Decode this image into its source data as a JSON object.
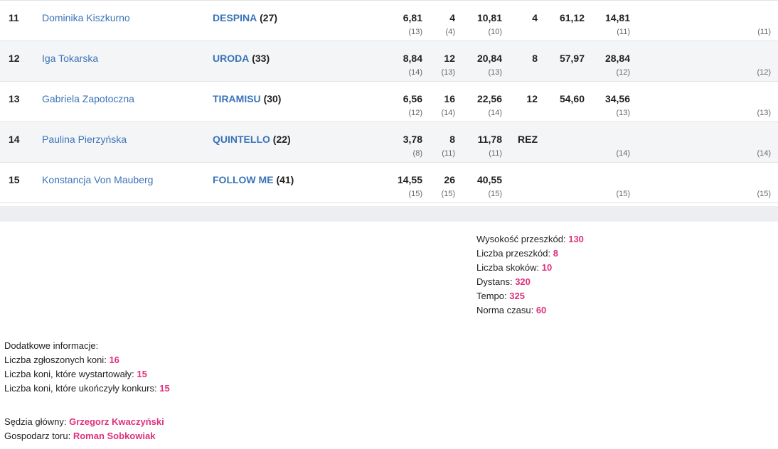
{
  "rows": [
    {
      "pos": "11",
      "rider": "Dominika Kiszkurno",
      "horse": "DESPINA",
      "horse_num": "(27)",
      "c1": "6,81",
      "c1r": "(13)",
      "c2": "4",
      "c2r": "(4)",
      "c3": "10,81",
      "c3r": "(10)",
      "c4": "4",
      "c5": "61,12",
      "c6": "14,81",
      "c6r": "(11)",
      "last": "(11)"
    },
    {
      "pos": "12",
      "rider": "Iga Tokarska",
      "horse": "URODA",
      "horse_num": "(33)",
      "c1": "8,84",
      "c1r": "(14)",
      "c2": "12",
      "c2r": "(13)",
      "c3": "20,84",
      "c3r": "(13)",
      "c4": "8",
      "c5": "57,97",
      "c6": "28,84",
      "c6r": "(12)",
      "last": "(12)"
    },
    {
      "pos": "13",
      "rider": "Gabriela Zapotoczna",
      "horse": "TIRAMISU",
      "horse_num": "(30)",
      "c1": "6,56",
      "c1r": "(12)",
      "c2": "16",
      "c2r": "(14)",
      "c3": "22,56",
      "c3r": "(14)",
      "c4": "12",
      "c5": "54,60",
      "c6": "34,56",
      "c6r": "(13)",
      "last": "(13)"
    },
    {
      "pos": "14",
      "rider": "Paulina Pierzyńska",
      "horse": "QUINTELLO",
      "horse_num": "(22)",
      "c1": "3,78",
      "c1r": "(8)",
      "c2": "8",
      "c2r": "(11)",
      "c3": "11,78",
      "c3r": "(11)",
      "c4": "REZ",
      "c5": "",
      "c6": "",
      "c6r": "(14)",
      "last": "(14)"
    },
    {
      "pos": "15",
      "rider": "Konstancja Von Mauberg",
      "horse": "FOLLOW ME",
      "horse_num": "(41)",
      "c1": "14,55",
      "c1r": "(15)",
      "c2": "26",
      "c2r": "(15)",
      "c3": "40,55",
      "c3r": "(15)",
      "c4": "",
      "c5": "",
      "c6": "",
      "c6r": "(15)",
      "last": "(15)"
    }
  ],
  "course": {
    "height_label": "Wysokość przeszkód:",
    "height": "130",
    "obstacles_label": "Liczba przeszkód:",
    "obstacles": "8",
    "jumps_label": "Liczba skoków:",
    "jumps": "10",
    "distance_label": "Dystans:",
    "distance": "320",
    "tempo_label": "Tempo:",
    "tempo": "325",
    "time_label": "Norma czasu:",
    "time": "60"
  },
  "extra": {
    "title": "Dodatkowe informacje:",
    "entered_label": "Liczba zgłoszonych koni:",
    "entered": "16",
    "started_label": "Liczba koni, które wystartowały:",
    "started": "15",
    "finished_label": "Liczba koni, które ukończyły konkurs:",
    "finished": "15"
  },
  "officials": {
    "judge_label": "Sędzia główny:",
    "judge": "Grzegorz Kwaczyński",
    "host_label": "Gospodarz toru:",
    "host": "Roman Sobkowiak"
  }
}
